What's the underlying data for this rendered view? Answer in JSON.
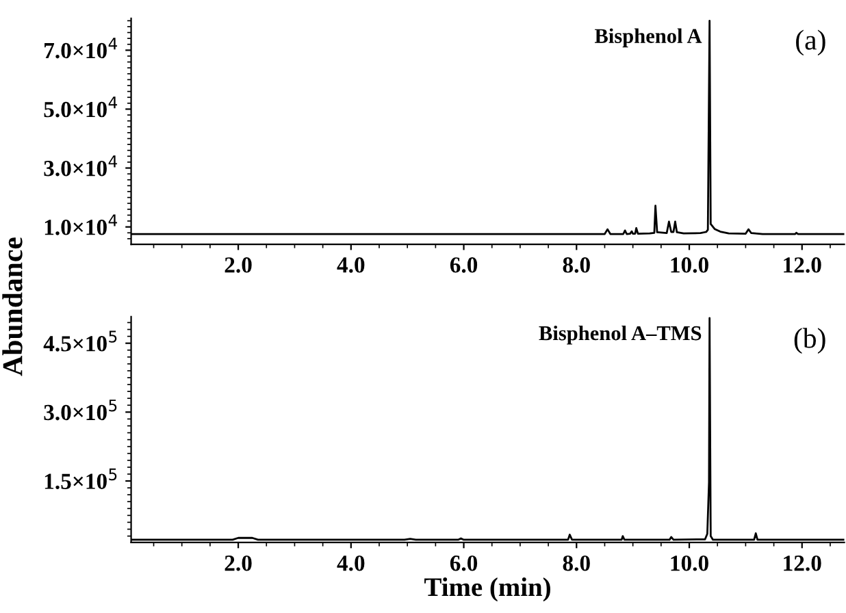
{
  "chart_data": [
    {
      "type": "line",
      "annotations": [
        {
          "text": "Bisphenol A",
          "x": 10.36,
          "y": 80000
        },
        "(a)"
      ],
      "series": [
        {
          "color": "#000000",
          "x": [
            0.1,
            8.5,
            8.55,
            8.6,
            8.83,
            8.86,
            8.89,
            8.95,
            8.98,
            9.0,
            9.04,
            9.06,
            9.09,
            9.3,
            9.38,
            9.4,
            9.43,
            9.6,
            9.64,
            9.68,
            9.72,
            9.75,
            9.78,
            9.9,
            10.2,
            10.3,
            10.33,
            10.36,
            10.38,
            10.45,
            10.55,
            10.7,
            11.0,
            11.05,
            11.1,
            11.3,
            11.88,
            11.9,
            11.93,
            12.75
          ],
          "values": [
            7600,
            7600,
            9200,
            7600,
            7600,
            8800,
            7600,
            7700,
            8500,
            7700,
            7700,
            9600,
            7700,
            7800,
            8000,
            17200,
            8200,
            7900,
            11800,
            8300,
            8300,
            11800,
            8200,
            7800,
            7900,
            8300,
            9000,
            80000,
            11000,
            9300,
            8400,
            7800,
            7700,
            9200,
            7900,
            7600,
            7600,
            8000,
            7600,
            7600
          ]
        }
      ],
      "xlim": [
        0.1,
        12.75
      ],
      "xticks": [
        {
          "value": 2,
          "label": "2.0"
        },
        {
          "value": 4,
          "label": "4.0"
        },
        {
          "value": 6,
          "label": "6.0"
        },
        {
          "value": 8,
          "label": "8.0"
        },
        {
          "value": 10,
          "label": "10.0"
        },
        {
          "value": 12,
          "label": "12.0"
        }
      ],
      "ylim": [
        4100,
        80800
      ],
      "yticks": [
        {
          "value": 10000,
          "label": "1.0×10$^{4}$"
        },
        {
          "value": 30000,
          "label": "3.0×10$^{4}$"
        },
        {
          "value": 50000,
          "label": "5.0×10$^{4}$"
        },
        {
          "value": 70000,
          "label": "7.0×10$^{4}$"
        }
      ],
      "grid": false,
      "legend": false
    },
    {
      "type": "line",
      "xlabel": "Time (min)",
      "ylabel": "Abundance",
      "annotations": [
        {
          "text": "Bisphenol A–TMS",
          "x": 10.36,
          "y": 505000
        },
        "(b)"
      ],
      "series": [
        {
          "color": "#000000",
          "x": [
            0.1,
            1.9,
            2.0,
            2.25,
            2.35,
            4.95,
            5.05,
            5.15,
            5.9,
            5.95,
            6.0,
            7.85,
            7.88,
            7.92,
            8.8,
            8.82,
            8.85,
            9.65,
            9.68,
            9.72,
            10.28,
            10.32,
            10.35,
            10.36,
            10.38,
            10.42,
            11.15,
            11.18,
            11.21,
            12.75
          ],
          "values": [
            22000,
            22000,
            26000,
            26000,
            22000,
            22000,
            24000,
            22000,
            22000,
            25000,
            22000,
            22000,
            33000,
            22000,
            22000,
            30000,
            22000,
            22000,
            28000,
            22000,
            23000,
            35000,
            147000,
            505000,
            30000,
            22000,
            22000,
            36000,
            22000,
            22000
          ]
        }
      ],
      "xlim": [
        0.1,
        12.75
      ],
      "xticks": [
        {
          "value": 2,
          "label": "2.0"
        },
        {
          "value": 4,
          "label": "4.0"
        },
        {
          "value": 6,
          "label": "6.0"
        },
        {
          "value": 8,
          "label": "8.0"
        },
        {
          "value": 10,
          "label": "10.0"
        },
        {
          "value": 12,
          "label": "12.0"
        }
      ],
      "ylim": [
        16000,
        508000
      ],
      "yticks": [
        {
          "value": 150000,
          "label": "1.5×10$^{5}$"
        },
        {
          "value": 300000,
          "label": "3.0×10$^{5}$"
        },
        {
          "value": 450000,
          "label": "4.5×10$^{5}$"
        }
      ],
      "grid": false,
      "legend": false
    }
  ]
}
